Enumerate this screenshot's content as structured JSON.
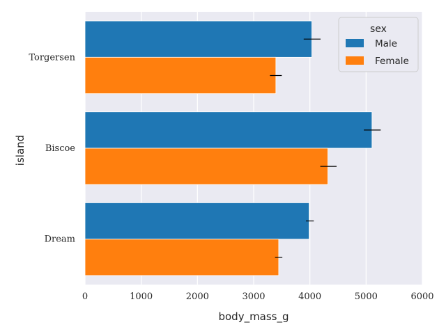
{
  "chart_data": {
    "type": "bar",
    "orientation": "horizontal",
    "categories": [
      "Torgersen",
      "Biscoe",
      "Dream"
    ],
    "series": [
      {
        "name": "Male",
        "color": "#1f77b4",
        "values": [
          4035,
          5105,
          3987
        ],
        "error_low": [
          3890,
          4960,
          3930
        ],
        "error_high": [
          4190,
          5260,
          4070
        ]
      },
      {
        "name": "Female",
        "color": "#ff7f0e",
        "values": [
          3395,
          4320,
          3445
        ],
        "error_low": [
          3290,
          4185,
          3380
        ],
        "error_high": [
          3500,
          4475,
          3510
        ]
      }
    ],
    "xlabel": "body_mass_g",
    "ylabel": "island",
    "xlim": [
      0,
      6000
    ],
    "xticks": [
      "0",
      "1000",
      "2000",
      "3000",
      "4000",
      "5000",
      "6000"
    ],
    "grid": true,
    "background": "#eaeaf2",
    "legend": {
      "title": "sex",
      "placement": "top-right",
      "entries": [
        "Male",
        "Female"
      ]
    }
  }
}
